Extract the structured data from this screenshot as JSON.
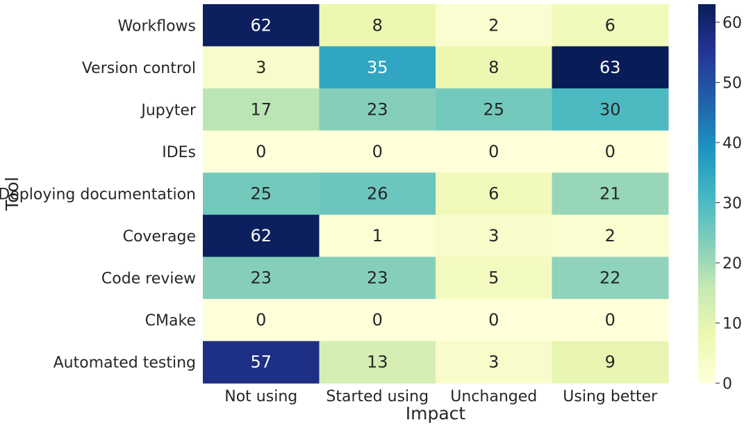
{
  "chart_data": {
    "type": "heatmap",
    "xlabel": "Impact",
    "ylabel": "Tool",
    "columns": [
      "Not using",
      "Started using",
      "Unchanged",
      "Using better"
    ],
    "rows": [
      "Workflows",
      "Version control",
      "Jupyter",
      "IDEs",
      "Deploying documentation",
      "Coverage",
      "Code review",
      "CMake",
      "Automated testing"
    ],
    "values": [
      [
        62,
        8,
        2,
        6
      ],
      [
        3,
        35,
        8,
        63
      ],
      [
        17,
        23,
        25,
        30
      ],
      [
        0,
        0,
        0,
        0
      ],
      [
        25,
        26,
        6,
        21
      ],
      [
        62,
        1,
        3,
        2
      ],
      [
        23,
        23,
        5,
        22
      ],
      [
        0,
        0,
        0,
        0
      ],
      [
        57,
        13,
        3,
        9
      ]
    ],
    "colorbar": {
      "range": [
        0,
        63
      ],
      "ticks": [
        0,
        10,
        20,
        30,
        40,
        50,
        60
      ],
      "colormap": "YlGnBu"
    }
  }
}
